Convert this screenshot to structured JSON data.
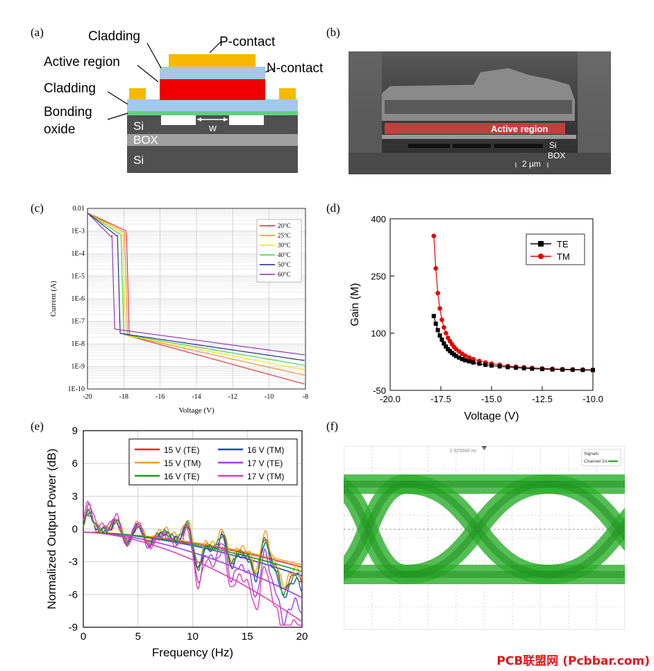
{
  "panels": {
    "a": "(a)",
    "b": "(b)",
    "c": "(c)",
    "d": "(d)",
    "e": "(e)",
    "f": "(f)"
  },
  "schematic": {
    "layers": {
      "cladding_top": "Cladding",
      "p_contact": "P-contact",
      "active_region": "Active region",
      "n_contact": "N-contact",
      "cladding_bottom": "Cladding",
      "bonding_line1": "Bonding",
      "bonding_line2": "oxide",
      "si_top": "Si",
      "box": "BOX",
      "si_bottom": "Si",
      "width": "w"
    },
    "colors": {
      "p_contact": "#f6b800",
      "cladding": "#a4c8ec",
      "active": "#f00000",
      "bonding": "#5fd17c",
      "si": "#505050",
      "box": "#a0a0a0"
    }
  },
  "sem": {
    "active_label": "Active region",
    "si": "Si",
    "box": "BOX",
    "scale": "2 µm"
  },
  "chart_data": [
    {
      "id": "c",
      "type": "line",
      "yscale": "log",
      "xlabel": "Voltage (V)",
      "ylabel": "Current (A)",
      "xlim": [
        -20,
        -8
      ],
      "ylim": [
        1e-10,
        0.01
      ],
      "xticks": [
        "-20",
        "-18",
        "-16",
        "-14",
        "-12",
        "-10",
        "-8"
      ],
      "yticks": [
        "0.01",
        "1E-3",
        "1E-4",
        "1E-5",
        "1E-6",
        "1E-7",
        "1E-8",
        "1E-9",
        "1E-10"
      ],
      "legend_position": "top-right",
      "series": [
        {
          "name": "20°C",
          "color": "#e8262b",
          "breakdown": -17.7,
          "tail_start": 2.2e-08,
          "tail_end": 1.6e-10
        },
        {
          "name": "25°C",
          "color": "#f28a1e",
          "breakdown": -17.8,
          "tail_start": 2.3e-08,
          "tail_end": 4e-10
        },
        {
          "name": "30°C",
          "color": "#f3e21a",
          "breakdown": -17.9,
          "tail_start": 2.4e-08,
          "tail_end": 7e-10
        },
        {
          "name": "40°C",
          "color": "#3ad43a",
          "breakdown": -18.0,
          "tail_start": 2.6e-08,
          "tail_end": 1.1e-09
        },
        {
          "name": "50°C",
          "color": "#1c1c88",
          "breakdown": -18.2,
          "tail_start": 2.9e-08,
          "tail_end": 1.8e-09
        },
        {
          "name": "60°C",
          "color": "#8b2ab0",
          "breakdown": -18.5,
          "tail_start": 4.5e-08,
          "tail_end": 3.2e-09
        }
      ]
    },
    {
      "id": "d",
      "type": "line",
      "xlabel": "Voltage (V)",
      "ylabel": "Gain (M)",
      "xlim": [
        -20,
        -10
      ],
      "ylim": [
        -50,
        400
      ],
      "xticks": [
        "-20.0",
        "-17.5",
        "-15.0",
        "-12.5",
        "-10.0"
      ],
      "yticks": [
        "-50",
        "100",
        "250",
        "400"
      ],
      "legend_position": "top-right",
      "series": [
        {
          "name": "TE",
          "color": "#000000",
          "marker": "square",
          "x": [
            -17.85,
            -17.75,
            -17.65,
            -17.55,
            -17.45,
            -17.35,
            -17.25,
            -17.15,
            -17.05,
            -16.95,
            -16.85,
            -16.75,
            -16.6,
            -16.45,
            -16.3,
            -16.1,
            -15.9,
            -15.6,
            -15.3,
            -15.0,
            -14.6,
            -14.2,
            -13.8,
            -13.4,
            -13.0,
            -12.5,
            -12.0,
            -11.5,
            -11.0,
            -10.5,
            -10.0
          ],
          "y": [
            145,
            125,
            108,
            94,
            83,
            73,
            65,
            58,
            53,
            48,
            44,
            40,
            36,
            32,
            29,
            26,
            23,
            20,
            17,
            15,
            13,
            11,
            9.5,
            8,
            7,
            6,
            5,
            4.5,
            4,
            3.5,
            3
          ]
        },
        {
          "name": "TM",
          "color": "#e50000",
          "marker": "circle",
          "x": [
            -17.85,
            -17.75,
            -17.65,
            -17.55,
            -17.45,
            -17.35,
            -17.25,
            -17.15,
            -17.05,
            -16.95,
            -16.85,
            -16.75,
            -16.6,
            -16.45,
            -16.3,
            -16.1,
            -15.9,
            -15.6,
            -15.3,
            -15.0,
            -14.6,
            -14.2,
            -13.8,
            -13.4,
            -13.0,
            -12.5,
            -12.0,
            -11.5,
            -11.0,
            -10.5,
            -10.0
          ],
          "y": [
            355,
            270,
            205,
            165,
            135,
            115,
            100,
            88,
            79,
            71,
            64,
            58,
            52,
            46,
            41,
            36,
            32,
            27,
            23,
            20,
            17,
            14,
            12,
            10.5,
            9,
            7.5,
            6.5,
            5.5,
            5,
            4.5,
            4
          ]
        }
      ]
    },
    {
      "id": "e",
      "type": "line",
      "xlabel": "Frequency (Hz)",
      "ylabel": "Normalized Output Power (dB)",
      "xlim": [
        0,
        20
      ],
      "ylim": [
        -9,
        9
      ],
      "xticks": [
        "0",
        "5",
        "10",
        "15",
        "20"
      ],
      "yticks": [
        "9",
        "6",
        "3",
        "0",
        "-3",
        "-6",
        "-9"
      ],
      "legend_position": "top-right",
      "series": [
        {
          "name": "15 V (TE)",
          "color": "#e8262b",
          "fit_end": -3.2
        },
        {
          "name": "16 V (TM)",
          "color": "#1f46c8",
          "fit_end": -4.0
        },
        {
          "name": "15 V (TM)",
          "color": "#f2a020",
          "fit_end": -3.0
        },
        {
          "name": "17 V (TE)",
          "color": "#a23ce6",
          "fit_end": -6.0
        },
        {
          "name": "16 V (TE)",
          "color": "#1d9a1d",
          "fit_end": -3.6
        },
        {
          "name": "17 V (TM)",
          "color": "#e23cb4",
          "fit_end": -8.2
        }
      ]
    }
  ],
  "eye": {
    "signals_label": "Signals",
    "channel_label": "Channel 2A",
    "marker_label": "1.023940 ns"
  },
  "watermark": "PCB联盟网 (Pcbbar.com)"
}
